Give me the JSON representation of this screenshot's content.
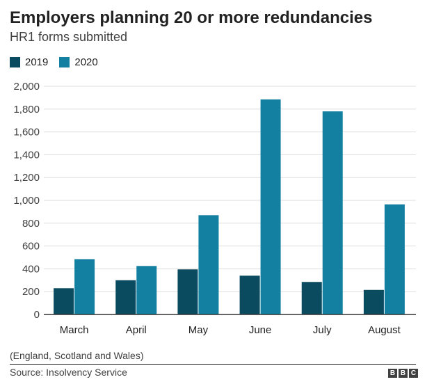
{
  "header": {
    "title": "Employers planning 20 or more redundancies",
    "subtitle": "HR1 forms submitted"
  },
  "footer": {
    "note": "(England, Scotland and Wales)",
    "source": "Source: Insolvency Service",
    "logo_letters": [
      "B",
      "B",
      "C"
    ]
  },
  "colors": {
    "series_2019": "#0b4b5f",
    "series_2020": "#1380a1",
    "grid": "#dddddd",
    "baseline": "#333333"
  },
  "chart_data": {
    "type": "bar",
    "title": "Employers planning 20 or more redundancies",
    "subtitle": "HR1 forms submitted",
    "categories": [
      "March",
      "April",
      "May",
      "June",
      "July",
      "August"
    ],
    "series": [
      {
        "name": "2019",
        "values": [
          230,
          300,
          395,
          340,
          285,
          215
        ]
      },
      {
        "name": "2020",
        "values": [
          485,
          425,
          870,
          1885,
          1780,
          965
        ]
      }
    ],
    "ylim": [
      0,
      2000
    ],
    "yticks": [
      0,
      200,
      400,
      600,
      800,
      1000,
      1200,
      1400,
      1600,
      1800,
      2000
    ],
    "ytick_labels": [
      "0",
      "200",
      "400",
      "600",
      "800",
      "1,000",
      "1,200",
      "1,400",
      "1,600",
      "1,800",
      "2,000"
    ],
    "grid": true,
    "legend": "top-left"
  }
}
